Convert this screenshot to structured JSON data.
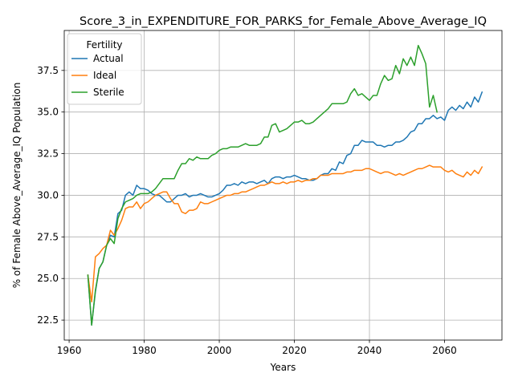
{
  "chart_data": {
    "type": "line",
    "title": "Score_3_in_EXPENDITURE_FOR_PARKS_for_Female_Above_Average_IQ",
    "xlabel": "Years",
    "ylabel": "% of Female Above_Average_IQ Population",
    "xlim": [
      1958.7,
      2075.3
    ],
    "ylim": [
      21.3,
      39.9
    ],
    "xticks": [
      1960,
      1980,
      2000,
      2020,
      2040,
      2060
    ],
    "yticks": [
      22.5,
      25.0,
      27.5,
      30.0,
      32.5,
      35.0,
      37.5
    ],
    "ytick_labels": [
      "22.5",
      "25.0",
      "27.5",
      "30.0",
      "32.5",
      "35.0",
      "37.5"
    ],
    "grid": true,
    "legend": {
      "title": "Fertility",
      "position": "top-left"
    },
    "colors": {
      "Actual": "#1f77b4",
      "Ideal": "#ff7f0e",
      "Sterile": "#2ca02c"
    },
    "x_start": 1965,
    "x_end": 2070,
    "series": [
      {
        "name": "Actual",
        "values": [
          25.2,
          22.2,
          24.2,
          25.6,
          26.0,
          27.0,
          27.6,
          27.5,
          28.9,
          29.1,
          30.0,
          30.2,
          30.0,
          30.6,
          30.4,
          30.4,
          30.3,
          30.1,
          30.0,
          30.0,
          29.8,
          29.6,
          29.6,
          29.8,
          30.0,
          30.0,
          30.1,
          29.9,
          30.0,
          30.0,
          30.1,
          30.0,
          29.9,
          29.9,
          30.0,
          30.1,
          30.3,
          30.6,
          30.6,
          30.7,
          30.6,
          30.8,
          30.7,
          30.8,
          30.8,
          30.7,
          30.8,
          30.9,
          30.7,
          31.0,
          31.1,
          31.1,
          31.0,
          31.1,
          31.1,
          31.2,
          31.1,
          31.0,
          31.0,
          30.9,
          30.9,
          31.0,
          31.2,
          31.3,
          31.3,
          31.6,
          31.5,
          32.0,
          31.9,
          32.4,
          32.5,
          33.0,
          33.0,
          33.3,
          33.2,
          33.2,
          33.2,
          33.0,
          33.0,
          32.9,
          33.0,
          33.0,
          33.2,
          33.2,
          33.3,
          33.5,
          33.8,
          33.9,
          34.3,
          34.3,
          34.6,
          34.6,
          34.8,
          34.6,
          34.7,
          34.5,
          35.1,
          35.3,
          35.1,
          35.4,
          35.2,
          35.6,
          35.3,
          35.9,
          35.6,
          36.2
        ]
      },
      {
        "name": "Ideal",
        "values": [
          25.2,
          23.6,
          26.3,
          26.5,
          26.8,
          27.0,
          27.9,
          27.6,
          28.0,
          28.5,
          29.2,
          29.3,
          29.3,
          29.6,
          29.2,
          29.5,
          29.6,
          29.8,
          30.0,
          30.1,
          30.2,
          30.2,
          29.8,
          29.5,
          29.5,
          29.0,
          28.9,
          29.1,
          29.1,
          29.2,
          29.6,
          29.5,
          29.5,
          29.6,
          29.7,
          29.8,
          29.9,
          30.0,
          30.0,
          30.1,
          30.1,
          30.2,
          30.2,
          30.3,
          30.4,
          30.5,
          30.6,
          30.6,
          30.7,
          30.8,
          30.7,
          30.7,
          30.8,
          30.7,
          30.8,
          30.8,
          30.9,
          30.8,
          30.9,
          30.9,
          31.0,
          31.0,
          31.2,
          31.2,
          31.2,
          31.3,
          31.3,
          31.3,
          31.3,
          31.4,
          31.4,
          31.5,
          31.5,
          31.5,
          31.6,
          31.6,
          31.5,
          31.4,
          31.3,
          31.4,
          31.4,
          31.3,
          31.2,
          31.3,
          31.2,
          31.3,
          31.4,
          31.5,
          31.6,
          31.6,
          31.7,
          31.8,
          31.7,
          31.7,
          31.7,
          31.5,
          31.4,
          31.5,
          31.3,
          31.2,
          31.1,
          31.4,
          31.2,
          31.5,
          31.3,
          31.7
        ]
      },
      {
        "name": "Sterile",
        "values": [
          25.2,
          22.2,
          24.3,
          25.6,
          26.0,
          27.0,
          27.4,
          27.1,
          28.6,
          29.2,
          29.6,
          29.7,
          29.8,
          30.0,
          30.1,
          30.1,
          30.1,
          30.2,
          30.4,
          30.7,
          31.0,
          31.0,
          31.0,
          31.0,
          31.5,
          31.9,
          31.9,
          32.2,
          32.1,
          32.3,
          32.2,
          32.2,
          32.2,
          32.4,
          32.5,
          32.7,
          32.8,
          32.8,
          32.9,
          32.9,
          32.9,
          33.0,
          33.1,
          33.0,
          33.0,
          33.0,
          33.1,
          33.5,
          33.5,
          34.2,
          34.3,
          33.8,
          33.9,
          34.0,
          34.2,
          34.4,
          34.4,
          34.5,
          34.3,
          34.3,
          34.4,
          34.6,
          34.8,
          35.0,
          35.2,
          35.5,
          35.5,
          35.5,
          35.5,
          35.6,
          36.1,
          36.4,
          36.0,
          36.1,
          35.9,
          35.7,
          36.0,
          36.0,
          36.7,
          37.2,
          36.9,
          37.0,
          37.8,
          37.3,
          38.2,
          37.8,
          38.3,
          37.8,
          39.0,
          38.5,
          37.9,
          35.3,
          36.0,
          35.0
        ]
      }
    ]
  }
}
